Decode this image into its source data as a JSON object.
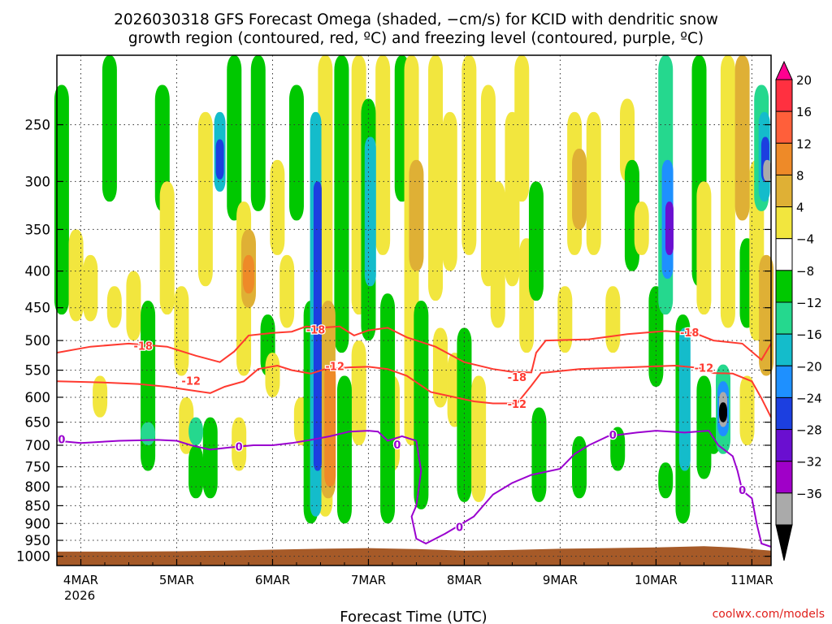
{
  "chart_data": {
    "type": "heatmap",
    "title_line1": "2026030318 GFS Forecast Omega (shaded, −cm/s) for KCID with dendritic snow",
    "title_line2": "growth region (contoured, red, ºC) and freezing level (contoured, purple, ºC)",
    "xlabel": "Forecast Time (UTC)",
    "x_categories": [
      "4MAR",
      "5MAR",
      "6MAR",
      "7MAR",
      "8MAR",
      "9MAR",
      "10MAR",
      "11MAR"
    ],
    "x_year": "2026",
    "x_range_days": [
      3.75,
      11.2
    ],
    "y_ticks": [
      250,
      300,
      350,
      400,
      450,
      500,
      550,
      600,
      650,
      700,
      750,
      800,
      850,
      900,
      950,
      1000
    ],
    "y_range_hpa": [
      200,
      1030
    ],
    "colorbar": {
      "labels": [
        "20",
        "16",
        "12",
        "8",
        "4",
        "−4",
        "−8",
        "−12",
        "−16",
        "−20",
        "−24",
        "−28",
        "−32",
        "−36"
      ],
      "colors": [
        "#ff0090",
        "#ff3040",
        "#ff5f3a",
        "#ee8a28",
        "#dfb035",
        "#f2e63e",
        "#ffffff",
        "#00c800",
        "#25d88e",
        "#14bccb",
        "#1e90ff",
        "#1c3fe0",
        "#6a0fd0",
        "#a000c8",
        "#aaaaaa",
        "#000000"
      ]
    },
    "shading": [
      {
        "t": 3.8,
        "p0": 220,
        "p1": 460,
        "v": -5
      },
      {
        "t": 3.95,
        "p0": 350,
        "p1": 470,
        "v": 5
      },
      {
        "t": 4.1,
        "p0": 380,
        "p1": 470,
        "v": 5
      },
      {
        "t": 4.2,
        "p0": 560,
        "p1": 640,
        "v": 4
      },
      {
        "t": 4.3,
        "p0": 200,
        "p1": 320,
        "v": -5
      },
      {
        "t": 4.35,
        "p0": 420,
        "p1": 480,
        "v": 5
      },
      {
        "t": 4.55,
        "p0": 400,
        "p1": 500,
        "v": 5
      },
      {
        "t": 4.7,
        "p0": 440,
        "p1": 760,
        "v": -6
      },
      {
        "t": 4.7,
        "p0": 650,
        "p1": 700,
        "v": -10
      },
      {
        "t": 4.85,
        "p0": 220,
        "p1": 330,
        "v": -5
      },
      {
        "t": 4.9,
        "p0": 300,
        "p1": 460,
        "v": 5
      },
      {
        "t": 5.05,
        "p0": 420,
        "p1": 560,
        "v": 5
      },
      {
        "t": 5.1,
        "p0": 600,
        "p1": 720,
        "v": 5
      },
      {
        "t": 5.2,
        "p0": 700,
        "p1": 830,
        "v": -5
      },
      {
        "t": 5.2,
        "p0": 640,
        "p1": 700,
        "v": -9
      },
      {
        "t": 5.3,
        "p0": 240,
        "p1": 420,
        "v": 5
      },
      {
        "t": 5.35,
        "p0": 640,
        "p1": 830,
        "v": -5
      },
      {
        "t": 5.45,
        "p0": 240,
        "p1": 310,
        "v": -12
      },
      {
        "t": 5.45,
        "p0": 262,
        "p1": 298,
        "v": -21
      },
      {
        "t": 5.6,
        "p0": 200,
        "p1": 340,
        "v": -5
      },
      {
        "t": 5.65,
        "p0": 640,
        "p1": 760,
        "v": 5
      },
      {
        "t": 5.7,
        "p0": 320,
        "p1": 560,
        "v": 6
      },
      {
        "t": 5.75,
        "p0": 350,
        "p1": 450,
        "v": 11
      },
      {
        "t": 5.75,
        "p0": 380,
        "p1": 430,
        "v": 14
      },
      {
        "t": 5.85,
        "p0": 200,
        "p1": 330,
        "v": -5
      },
      {
        "t": 5.95,
        "p0": 460,
        "p1": 560,
        "v": -5
      },
      {
        "t": 6.0,
        "p0": 520,
        "p1": 600,
        "v": 5
      },
      {
        "t": 6.05,
        "p0": 280,
        "p1": 380,
        "v": 5
      },
      {
        "t": 6.15,
        "p0": 380,
        "p1": 480,
        "v": 5
      },
      {
        "t": 6.25,
        "p0": 220,
        "p1": 340,
        "v": -5
      },
      {
        "t": 6.3,
        "p0": 600,
        "p1": 700,
        "v": 5
      },
      {
        "t": 6.4,
        "p0": 440,
        "p1": 900,
        "v": -7
      },
      {
        "t": 6.45,
        "p0": 240,
        "p1": 880,
        "v": -13
      },
      {
        "t": 6.47,
        "p0": 300,
        "p1": 760,
        "v": -20
      },
      {
        "t": 6.55,
        "p0": 200,
        "p1": 880,
        "v": 5
      },
      {
        "t": 6.58,
        "p0": 440,
        "p1": 830,
        "v": 10
      },
      {
        "t": 6.6,
        "p0": 540,
        "p1": 800,
        "v": 15
      },
      {
        "t": 6.72,
        "p0": 200,
        "p1": 520,
        "v": -5
      },
      {
        "t": 6.75,
        "p0": 560,
        "p1": 900,
        "v": -6
      },
      {
        "t": 6.9,
        "p0": 200,
        "p1": 460,
        "v": 5
      },
      {
        "t": 6.9,
        "p0": 500,
        "p1": 700,
        "v": 5
      },
      {
        "t": 7.0,
        "p0": 230,
        "p1": 500,
        "v": -7
      },
      {
        "t": 7.02,
        "p0": 260,
        "p1": 420,
        "v": -14
      },
      {
        "t": 7.15,
        "p0": 200,
        "p1": 380,
        "v": 5
      },
      {
        "t": 7.2,
        "p0": 430,
        "p1": 900,
        "v": -6
      },
      {
        "t": 7.25,
        "p0": 560,
        "p1": 760,
        "v": 5
      },
      {
        "t": 7.35,
        "p0": 200,
        "p1": 320,
        "v": -5
      },
      {
        "t": 7.45,
        "p0": 200,
        "p1": 700,
        "v": 5
      },
      {
        "t": 7.5,
        "p0": 280,
        "p1": 400,
        "v": 8
      },
      {
        "t": 7.55,
        "p0": 440,
        "p1": 860,
        "v": -5
      },
      {
        "t": 7.7,
        "p0": 200,
        "p1": 440,
        "v": 5
      },
      {
        "t": 7.75,
        "p0": 480,
        "p1": 620,
        "v": 5
      },
      {
        "t": 7.85,
        "p0": 240,
        "p1": 400,
        "v": 5
      },
      {
        "t": 7.9,
        "p0": 520,
        "p1": 660,
        "v": 5
      },
      {
        "t": 8.0,
        "p0": 480,
        "p1": 840,
        "v": -5
      },
      {
        "t": 8.05,
        "p0": 200,
        "p1": 380,
        "v": 5
      },
      {
        "t": 8.15,
        "p0": 560,
        "p1": 840,
        "v": 5
      },
      {
        "t": 8.25,
        "p0": 220,
        "p1": 420,
        "v": 5
      },
      {
        "t": 8.35,
        "p0": 300,
        "p1": 480,
        "v": 5
      },
      {
        "t": 8.5,
        "p0": 240,
        "p1": 420,
        "v": 5
      },
      {
        "t": 8.6,
        "p0": 200,
        "p1": 320,
        "v": 5
      },
      {
        "t": 8.65,
        "p0": 360,
        "p1": 520,
        "v": 5
      },
      {
        "t": 8.75,
        "p0": 300,
        "p1": 440,
        "v": -5
      },
      {
        "t": 8.78,
        "p0": 620,
        "p1": 840,
        "v": -5
      },
      {
        "t": 9.05,
        "p0": 420,
        "p1": 520,
        "v": 5
      },
      {
        "t": 9.15,
        "p0": 240,
        "p1": 380,
        "v": 5
      },
      {
        "t": 9.2,
        "p0": 270,
        "p1": 350,
        "v": 10
      },
      {
        "t": 9.2,
        "p0": 680,
        "p1": 830,
        "v": -5
      },
      {
        "t": 9.35,
        "p0": 240,
        "p1": 380,
        "v": 5
      },
      {
        "t": 9.55,
        "p0": 420,
        "p1": 520,
        "v": 5
      },
      {
        "t": 9.6,
        "p0": 660,
        "p1": 760,
        "v": -5
      },
      {
        "t": 9.7,
        "p0": 230,
        "p1": 300,
        "v": 5
      },
      {
        "t": 9.75,
        "p0": 280,
        "p1": 400,
        "v": -5
      },
      {
        "t": 9.85,
        "p0": 320,
        "p1": 380,
        "v": 5
      },
      {
        "t": 10.0,
        "p0": 420,
        "p1": 580,
        "v": -6
      },
      {
        "t": 10.1,
        "p0": 200,
        "p1": 460,
        "v": -9
      },
      {
        "t": 10.12,
        "p0": 280,
        "p1": 410,
        "v": -17
      },
      {
        "t": 10.14,
        "p0": 320,
        "p1": 380,
        "v": -26
      },
      {
        "t": 10.1,
        "p0": 740,
        "p1": 830,
        "v": -6
      },
      {
        "t": 10.28,
        "p0": 460,
        "p1": 900,
        "v": -6
      },
      {
        "t": 10.3,
        "p0": 480,
        "p1": 760,
        "v": -12
      },
      {
        "t": 10.45,
        "p0": 200,
        "p1": 420,
        "v": -5
      },
      {
        "t": 10.5,
        "p0": 300,
        "p1": 460,
        "v": 5
      },
      {
        "t": 10.5,
        "p0": 560,
        "p1": 780,
        "v": -6
      },
      {
        "t": 10.6,
        "p0": 640,
        "p1": 720,
        "v": -6
      },
      {
        "t": 10.7,
        "p0": 540,
        "p1": 720,
        "v": -9
      },
      {
        "t": 10.7,
        "p0": 570,
        "p1": 680,
        "v": -18
      },
      {
        "t": 10.7,
        "p0": 590,
        "p1": 660,
        "v": -33
      },
      {
        "t": 10.7,
        "p0": 610,
        "p1": 650,
        "v": -37
      },
      {
        "t": 10.75,
        "p0": 200,
        "p1": 480,
        "v": 6
      },
      {
        "t": 10.9,
        "p0": 200,
        "p1": 340,
        "v": 10
      },
      {
        "t": 10.95,
        "p0": 360,
        "p1": 480,
        "v": -5
      },
      {
        "t": 10.95,
        "p0": 560,
        "p1": 700,
        "v": 5
      },
      {
        "t": 11.05,
        "p0": 280,
        "p1": 500,
        "v": 5
      },
      {
        "t": 11.1,
        "p0": 220,
        "p1": 330,
        "v": -8
      },
      {
        "t": 11.13,
        "p0": 240,
        "p1": 320,
        "v": -14
      },
      {
        "t": 11.14,
        "p0": 260,
        "p1": 300,
        "v": -22
      },
      {
        "t": 11.16,
        "p0": 280,
        "p1": 300,
        "v": -33
      },
      {
        "t": 11.15,
        "p0": 380,
        "p1": 560,
        "v": 10
      }
    ],
    "contours": [
      {
        "name": "-18C",
        "color": "#ff3a30",
        "label": "-18",
        "label_at": [
          [
            4.65,
            510
          ],
          [
            6.45,
            484
          ],
          [
            8.55,
            564
          ],
          [
            10.35,
            488
          ]
        ],
        "points": [
          [
            3.75,
            520
          ],
          [
            4.1,
            510
          ],
          [
            4.5,
            505
          ],
          [
            4.9,
            510
          ],
          [
            5.2,
            525
          ],
          [
            5.45,
            536
          ],
          [
            5.6,
            518
          ],
          [
            5.75,
            492
          ],
          [
            6.0,
            488
          ],
          [
            6.2,
            486
          ],
          [
            6.35,
            478
          ],
          [
            6.5,
            480
          ],
          [
            6.7,
            478
          ],
          [
            6.85,
            492
          ],
          [
            7.0,
            484
          ],
          [
            7.2,
            480
          ],
          [
            7.4,
            495
          ],
          [
            7.7,
            510
          ],
          [
            8.0,
            536
          ],
          [
            8.3,
            548
          ],
          [
            8.5,
            553
          ],
          [
            8.7,
            554
          ],
          [
            8.75,
            520
          ],
          [
            8.85,
            500
          ],
          [
            9.3,
            498
          ],
          [
            9.7,
            490
          ],
          [
            10.1,
            485
          ],
          [
            10.4,
            488
          ],
          [
            10.6,
            500
          ],
          [
            10.9,
            505
          ],
          [
            11.1,
            532
          ],
          [
            11.2,
            505
          ]
        ]
      },
      {
        "name": "-12C",
        "color": "#ff3a30",
        "label": "-12",
        "label_at": [
          [
            5.15,
            570
          ],
          [
            6.65,
            544
          ],
          [
            8.55,
            614
          ],
          [
            10.5,
            547
          ]
        ],
        "points": [
          [
            3.75,
            570
          ],
          [
            4.2,
            572
          ],
          [
            4.6,
            575
          ],
          [
            4.9,
            580
          ],
          [
            5.2,
            588
          ],
          [
            5.35,
            592
          ],
          [
            5.5,
            580
          ],
          [
            5.7,
            570
          ],
          [
            5.85,
            548
          ],
          [
            6.05,
            542
          ],
          [
            6.2,
            550
          ],
          [
            6.4,
            556
          ],
          [
            6.55,
            548
          ],
          [
            6.8,
            545
          ],
          [
            7.0,
            544
          ],
          [
            7.2,
            548
          ],
          [
            7.4,
            560
          ],
          [
            7.65,
            590
          ],
          [
            7.9,
            600
          ],
          [
            8.1,
            608
          ],
          [
            8.3,
            612
          ],
          [
            8.55,
            612
          ],
          [
            8.7,
            578
          ],
          [
            8.8,
            555
          ],
          [
            9.2,
            548
          ],
          [
            9.7,
            545
          ],
          [
            10.2,
            542
          ],
          [
            10.45,
            546
          ],
          [
            10.6,
            555
          ],
          [
            10.8,
            556
          ],
          [
            11.0,
            570
          ],
          [
            11.1,
            602
          ],
          [
            11.2,
            640
          ]
        ]
      },
      {
        "name": "0C",
        "color": "#9a00cf",
        "label": "0",
        "label_at": [
          [
            3.8,
            688
          ],
          [
            5.65,
            705
          ],
          [
            7.3,
            700
          ],
          [
            7.95,
            912
          ],
          [
            9.55,
            678
          ],
          [
            10.9,
            810
          ]
        ],
        "points": [
          [
            3.75,
            690
          ],
          [
            4.0,
            695
          ],
          [
            4.4,
            690
          ],
          [
            4.8,
            688
          ],
          [
            5.0,
            690
          ],
          [
            5.15,
            700
          ],
          [
            5.35,
            710
          ],
          [
            5.55,
            705
          ],
          [
            5.8,
            700
          ],
          [
            6.0,
            700
          ],
          [
            6.2,
            695
          ],
          [
            6.4,
            688
          ],
          [
            6.6,
            680
          ],
          [
            6.8,
            670
          ],
          [
            7.0,
            668
          ],
          [
            7.1,
            670
          ],
          [
            7.2,
            690
          ],
          [
            7.35,
            680
          ],
          [
            7.5,
            690
          ],
          [
            7.55,
            760
          ],
          [
            7.5,
            850
          ],
          [
            7.45,
            880
          ],
          [
            7.5,
            945
          ],
          [
            7.6,
            960
          ],
          [
            7.8,
            930
          ],
          [
            7.95,
            905
          ],
          [
            8.1,
            880
          ],
          [
            8.3,
            820
          ],
          [
            8.5,
            790
          ],
          [
            8.7,
            770
          ],
          [
            9.0,
            755
          ],
          [
            9.15,
            720
          ],
          [
            9.3,
            700
          ],
          [
            9.5,
            680
          ],
          [
            9.8,
            672
          ],
          [
            10.0,
            668
          ],
          [
            10.3,
            672
          ],
          [
            10.55,
            668
          ],
          [
            10.65,
            700
          ],
          [
            10.8,
            725
          ],
          [
            10.85,
            760
          ],
          [
            10.9,
            810
          ],
          [
            11.0,
            830
          ],
          [
            11.05,
            900
          ],
          [
            11.1,
            960
          ],
          [
            11.2,
            970
          ]
        ]
      }
    ],
    "terrain_top_hpa": [
      [
        3.75,
        985
      ],
      [
        4.5,
        985
      ],
      [
        5.0,
        984
      ],
      [
        5.5,
        982
      ],
      [
        6.0,
        979
      ],
      [
        6.5,
        976
      ],
      [
        7.0,
        974
      ],
      [
        7.5,
        977
      ],
      [
        8.0,
        982
      ],
      [
        8.5,
        980
      ],
      [
        9.0,
        976
      ],
      [
        9.5,
        974
      ],
      [
        10.0,
        972
      ],
      [
        10.5,
        968
      ],
      [
        10.8,
        972
      ],
      [
        11.2,
        982
      ]
    ],
    "terrain_color": "#a65a28"
  },
  "credit": "coolwx.com/models"
}
